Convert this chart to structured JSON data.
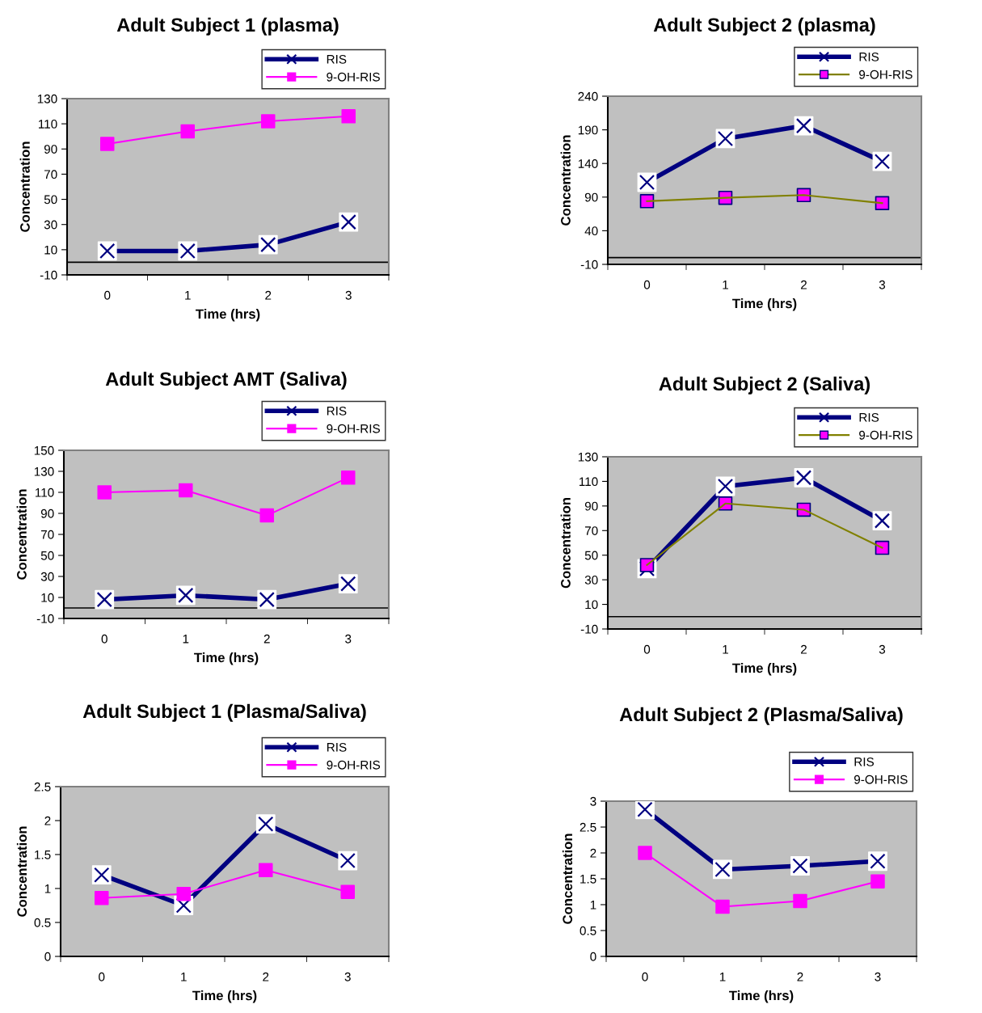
{
  "chart_data": [
    {
      "type": "line",
      "title": "Adult Subject 1 (plasma)",
      "xlabel": "Time (hrs)",
      "ylabel": "Concentration",
      "categories": [
        "0",
        "1",
        "2",
        "3"
      ],
      "series": [
        {
          "name": "RIS",
          "color": "#000080",
          "marker": "cross",
          "values": [
            9,
            9,
            14,
            32
          ]
        },
        {
          "name": "9-OH-RIS",
          "color": "#ff00ff",
          "marker": "square",
          "values": [
            94,
            104,
            112,
            116
          ]
        }
      ],
      "ylim": [
        -10,
        130
      ],
      "yticks": [
        -10,
        10,
        30,
        50,
        70,
        90,
        110,
        130
      ],
      "ref_lines": [
        {
          "axis": "y",
          "value": 0,
          "color": "#000000"
        }
      ],
      "grid": false,
      "legend": "top right"
    },
    {
      "type": "line",
      "title": "Adult Subject 2 (plasma)",
      "xlabel": "Time (hrs)",
      "ylabel": "Concentration",
      "categories": [
        "0",
        "1",
        "2",
        "3"
      ],
      "series": [
        {
          "name": "RIS",
          "color": "#000080",
          "marker": "cross",
          "values": [
            112,
            177,
            196,
            143
          ]
        },
        {
          "name": "9-OH-RIS",
          "color": "#808000",
          "colors": [
            "#ff00ff",
            "#ff00ff",
            "#ff00ff",
            "#ff00ff"
          ],
          "marker": "square",
          "values": [
            84,
            89,
            93,
            81
          ]
        }
      ],
      "ylim": [
        -10,
        240
      ],
      "yticks": [
        -10,
        40,
        90,
        140,
        190,
        240
      ],
      "ref_lines": [
        {
          "axis": "y",
          "value": 0,
          "color": "#000000"
        }
      ],
      "grid": false,
      "legend": "top right"
    },
    {
      "type": "line",
      "title": "Adult Subject AMT (Saliva)",
      "xlabel": "Time (hrs)",
      "ylabel": "Concentration",
      "categories": [
        "0",
        "1",
        "2",
        "3"
      ],
      "series": [
        {
          "name": "RIS",
          "color": "#000080",
          "marker": "cross",
          "values": [
            8,
            12,
            8,
            23
          ]
        },
        {
          "name": "9-OH-RIS",
          "color": "#ff00ff",
          "marker": "square",
          "values": [
            110,
            112,
            88,
            124
          ]
        }
      ],
      "ylim": [
        -10,
        150
      ],
      "yticks": [
        -10,
        10,
        30,
        50,
        70,
        90,
        110,
        130,
        150
      ],
      "ref_lines": [
        {
          "axis": "y",
          "value": 0,
          "color": "#000000"
        }
      ],
      "grid": false,
      "legend": "top right"
    },
    {
      "type": "line",
      "title": "Adult Subject 2 (Saliva)",
      "xlabel": "Time (hrs)",
      "ylabel": "Concentration",
      "categories": [
        "0",
        "1",
        "2",
        "3"
      ],
      "series": [
        {
          "name": "RIS",
          "color": "#000080",
          "marker": "cross",
          "values": [
            39,
            106,
            113,
            78
          ]
        },
        {
          "name": "9-OH-RIS",
          "color": "#808000",
          "colors": [
            "#ff00ff",
            "#ff00ff",
            "#ff00ff",
            "#ff00ff"
          ],
          "marker": "square",
          "values": [
            42,
            92,
            87,
            56
          ]
        }
      ],
      "ylim": [
        -10,
        130
      ],
      "yticks": [
        -10,
        10,
        30,
        50,
        70,
        90,
        110,
        130
      ],
      "ref_lines": [
        {
          "axis": "y",
          "value": 0,
          "color": "#000000"
        }
      ],
      "grid": false,
      "legend": "top right"
    },
    {
      "type": "line",
      "title": "Adult Subject 1 (Plasma/Saliva)",
      "xlabel": "Time (hrs)",
      "ylabel": "Concentration",
      "categories": [
        "0",
        "1",
        "2",
        "3"
      ],
      "series": [
        {
          "name": "RIS",
          "color": "#000080",
          "marker": "cross",
          "values": [
            1.2,
            0.75,
            1.95,
            1.41
          ]
        },
        {
          "name": "9-OH-RIS",
          "color": "#ff00ff",
          "marker": "square",
          "values": [
            0.86,
            0.92,
            1.27,
            0.95
          ]
        }
      ],
      "ylim": [
        0,
        2.5
      ],
      "yticks": [
        0,
        0.5,
        1,
        1.5,
        2,
        2.5
      ],
      "grid": false,
      "legend": "top right"
    },
    {
      "type": "line",
      "title": "Adult Subject 2 (Plasma/Saliva)",
      "xlabel": "Time (hrs)",
      "ylabel": "Concentration",
      "categories": [
        "0",
        "1",
        "2",
        "3"
      ],
      "series": [
        {
          "name": "RIS",
          "color": "#000080",
          "marker": "cross",
          "values": [
            2.84,
            1.68,
            1.75,
            1.84
          ]
        },
        {
          "name": "9-OH-RIS",
          "color": "#ff00ff",
          "marker": "square",
          "values": [
            2.0,
            0.96,
            1.07,
            1.45
          ]
        }
      ],
      "ylim": [
        0,
        3
      ],
      "yticks": [
        0,
        0.5,
        1,
        1.5,
        2,
        2.5,
        3
      ],
      "grid": false,
      "legend": "top right"
    }
  ]
}
